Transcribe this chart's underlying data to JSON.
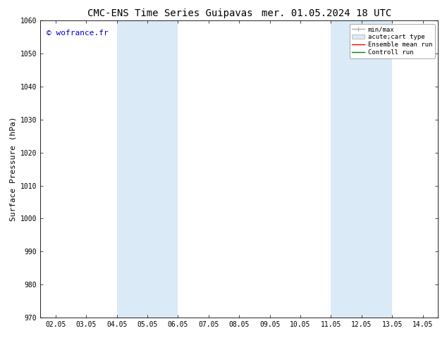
{
  "title_left": "CMC-ENS Time Series Guipavas",
  "title_right": "mer. 01.05.2024 18 UTC",
  "ylabel": "Surface Pressure (hPa)",
  "ylim": [
    970,
    1060
  ],
  "yticks": [
    970,
    980,
    990,
    1000,
    1010,
    1020,
    1030,
    1040,
    1050,
    1060
  ],
  "xlim": [
    1.55,
    14.55
  ],
  "xticks": [
    2.05,
    3.05,
    4.05,
    5.05,
    6.05,
    7.05,
    8.05,
    9.05,
    10.05,
    11.05,
    12.05,
    13.05,
    14.05
  ],
  "xticklabels": [
    "02.05",
    "03.05",
    "04.05",
    "05.05",
    "06.05",
    "07.05",
    "08.05",
    "09.05",
    "10.05",
    "11.05",
    "12.05",
    "13.05",
    "14.05"
  ],
  "shaded_bands": [
    {
      "xmin": 4.05,
      "xmax": 6.05
    },
    {
      "xmin": 11.05,
      "xmax": 13.05
    }
  ],
  "band_color": "#daeaf7",
  "watermark": "© wofrance.fr",
  "watermark_color": "#0000cc",
  "legend_items": [
    {
      "label": "min/max",
      "color": "#aaaaaa",
      "lw": 1.0
    },
    {
      "label": "acute;cart type",
      "color": "#daeaf7",
      "lw": 6
    },
    {
      "label": "Ensemble mean run",
      "color": "red",
      "lw": 1.0
    },
    {
      "label": "Controll run",
      "color": "green",
      "lw": 1.0
    }
  ],
  "background_color": "#ffffff",
  "title_fontsize": 10,
  "tick_fontsize": 7,
  "ylabel_fontsize": 8
}
